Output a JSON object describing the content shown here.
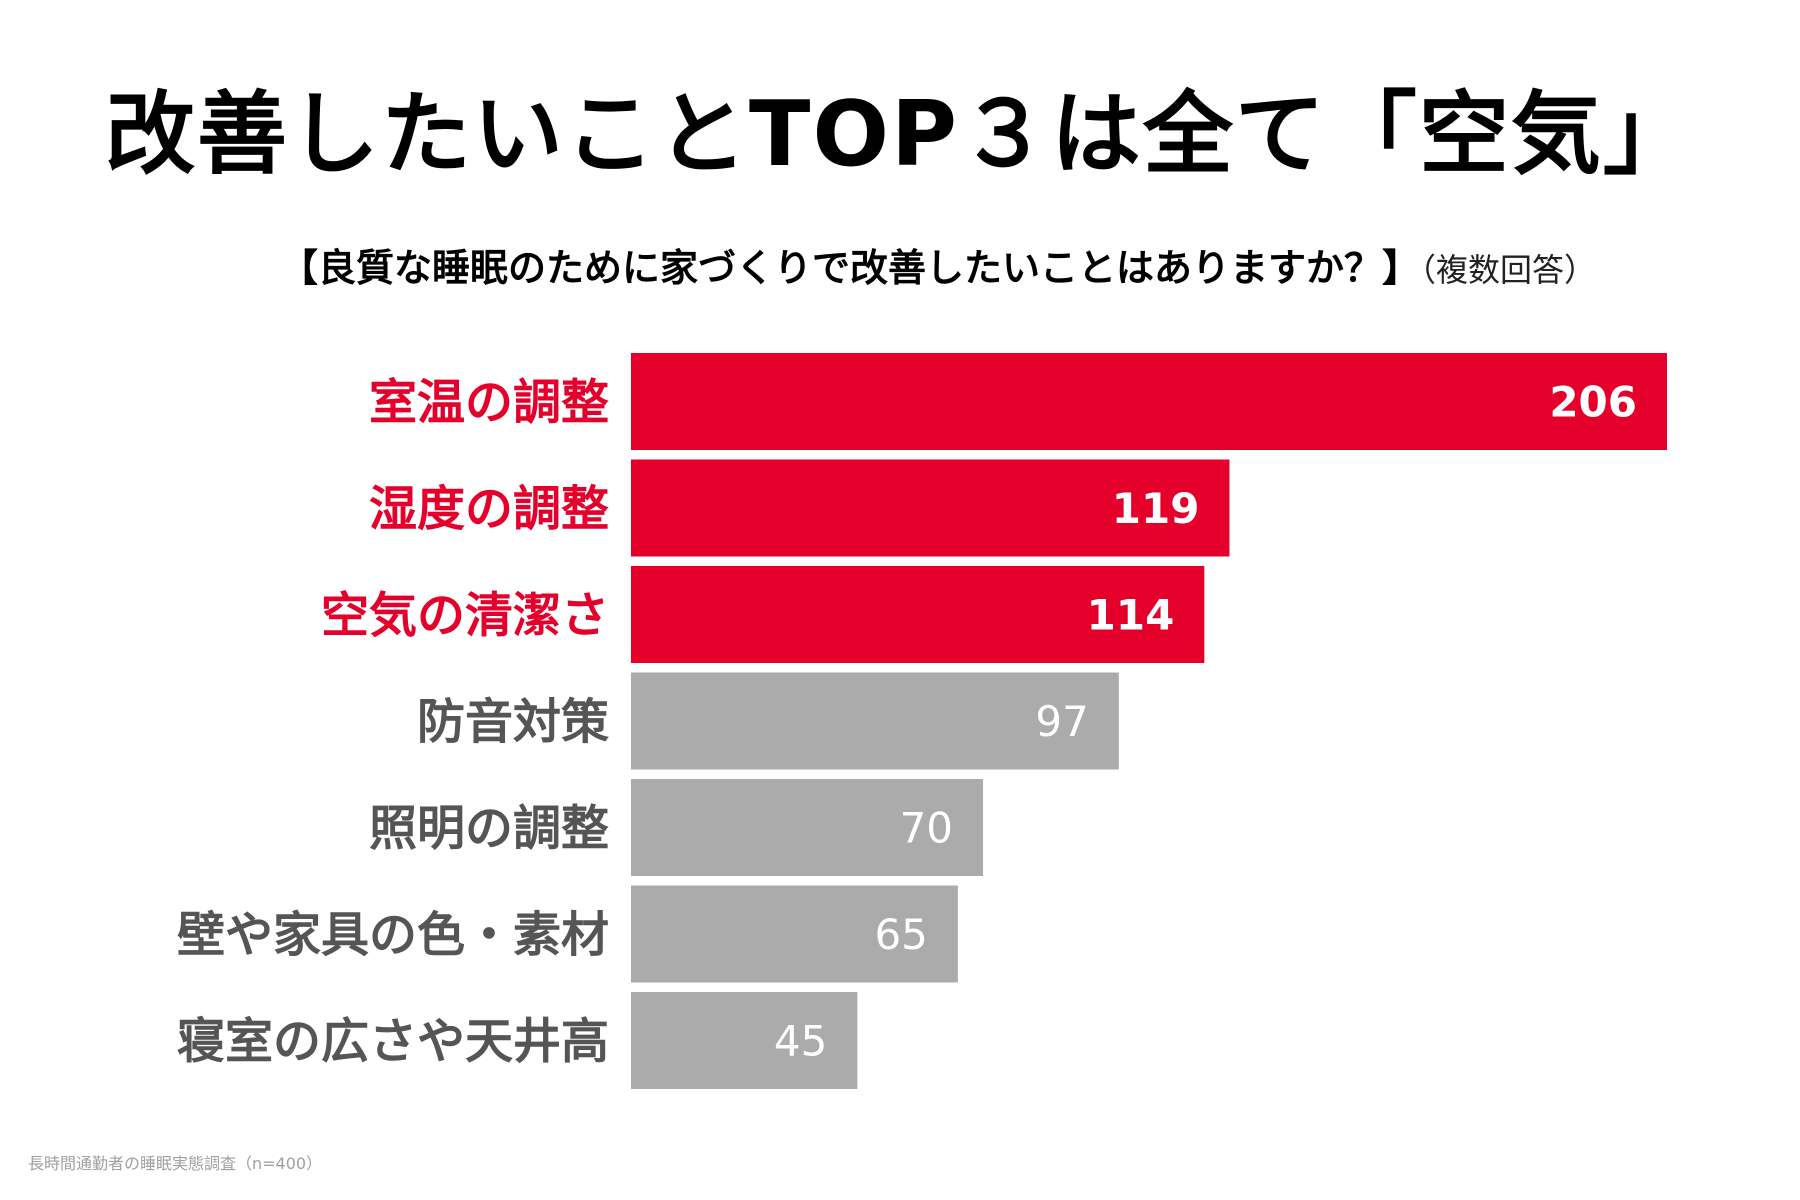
{
  "headline": "改善したいことTOP３は全て「空気」",
  "subtitle": "【良質な睡眠のために家づくりで改善したいことはありますか？】",
  "subtitle_note": "（複数回答）",
  "source": "長時間通勤者の睡眠実態調査（n=400）",
  "colors": {
    "highlight": "#e4002b",
    "muted": "#ababab",
    "muted_label": "#555555",
    "bar_label_light": "#ffffff"
  },
  "chart_data": {
    "type": "bar",
    "orientation": "horizontal",
    "title": "【良質な睡眠のために家づくりで改善したいことはありますか？】",
    "xlabel": "",
    "ylabel": "",
    "xlim": [
      0,
      206
    ],
    "grid": false,
    "categories": [
      "室温の調整",
      "湿度の調整",
      "空気の清潔さ",
      "防音対策",
      "照明の調整",
      "壁や家具の色・素材",
      "寝室の広さや天井高"
    ],
    "values": [
      206,
      119,
      114,
      97,
      70,
      65,
      45
    ],
    "highlighted": [
      true,
      true,
      true,
      false,
      false,
      false,
      false
    ]
  }
}
